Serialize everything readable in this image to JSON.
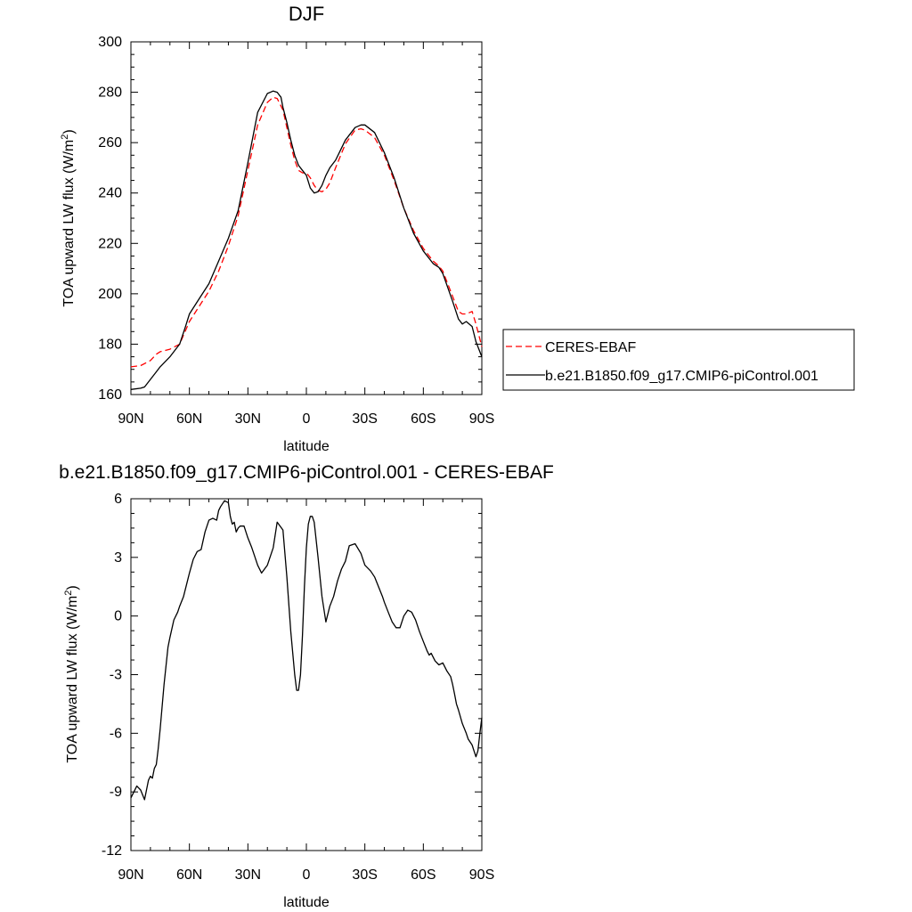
{
  "chart_data": [
    {
      "type": "line",
      "title": "DJF",
      "xlabel": "latitude",
      "ylabel_main": "TOA upward LW flux (W/m",
      "ylabel_sup": "2",
      "ylabel_close": ")",
      "xlim": [
        90,
        -90
      ],
      "ylim": [
        160,
        300
      ],
      "xticks": [
        90,
        60,
        30,
        0,
        -30,
        -60,
        -90
      ],
      "xtick_labels": [
        "90N",
        "60N",
        "30N",
        "0",
        "30S",
        "60S",
        "90S"
      ],
      "yticks": [
        160,
        180,
        200,
        220,
        240,
        260,
        280,
        300
      ],
      "ytick_labels": [
        "160",
        "180",
        "200",
        "220",
        "240",
        "260",
        "280",
        "300"
      ],
      "legend_position": "right",
      "series": [
        {
          "name": "CERES-EBAF",
          "color": "#ff0000",
          "dash": "dashed",
          "x": [
            90,
            85,
            80,
            77,
            75,
            70,
            65,
            60,
            55,
            50,
            45,
            40,
            35,
            30,
            25,
            20,
            17,
            15,
            12,
            10,
            8,
            6,
            4,
            2,
            0,
            -2,
            -4,
            -6,
            -8,
            -10,
            -12,
            -15,
            -20,
            -25,
            -28,
            -30,
            -35,
            -40,
            -45,
            -50,
            -55,
            -60,
            -65,
            -68,
            -70,
            -75,
            -78,
            -80,
            -82,
            -85,
            -87,
            -90
          ],
          "y": [
            171,
            171.5,
            173.5,
            176,
            177,
            178,
            180,
            189,
            195,
            201,
            209,
            219,
            231,
            249,
            267,
            276,
            278,
            277.5,
            273,
            266,
            259,
            253,
            249,
            248,
            248,
            246,
            243,
            241,
            240.5,
            241.5,
            244,
            250,
            259.5,
            265,
            265.5,
            265,
            262,
            255,
            245,
            234,
            225,
            218,
            213,
            211,
            209,
            199,
            193,
            192,
            192,
            193,
            188,
            179
          ]
        },
        {
          "name": "b.e21.B1850.f09_g17.CMIP6-piControl.001",
          "color": "#000000",
          "dash": "solid",
          "x": [
            90,
            85,
            83,
            80,
            77,
            75,
            70,
            65,
            62,
            60,
            55,
            50,
            45,
            40,
            35,
            30,
            25,
            20,
            17,
            15,
            13,
            12,
            10,
            8,
            6,
            4,
            2,
            0,
            -2,
            -4,
            -6,
            -8,
            -10,
            -12,
            -15,
            -20,
            -25,
            -28,
            -30,
            -35,
            -40,
            -45,
            -50,
            -55,
            -60,
            -65,
            -68,
            -70,
            -75,
            -78,
            -80,
            -82,
            -85,
            -87,
            -90
          ],
          "y": [
            162,
            162.5,
            163,
            166,
            169,
            171,
            175,
            180,
            187,
            192,
            198,
            204,
            213,
            222,
            233,
            252,
            272,
            279.5,
            280.5,
            280,
            278,
            274,
            268,
            261,
            255,
            251,
            249,
            247,
            242,
            240,
            240.5,
            243,
            247,
            250,
            253,
            261,
            266,
            267,
            267,
            264,
            256,
            246,
            234,
            224,
            217,
            212,
            210.5,
            208,
            197,
            190,
            188,
            189,
            187,
            181,
            175
          ]
        }
      ]
    },
    {
      "type": "line",
      "title": "b.e21.B1850.f09_g17.CMIP6-piControl.001 - CERES-EBAF",
      "xlabel": "latitude",
      "ylabel_main": "TOA upward LW flux (W/m",
      "ylabel_sup": "2",
      "ylabel_close": ")",
      "xlim": [
        90,
        -90
      ],
      "ylim": [
        -12,
        6
      ],
      "xticks": [
        90,
        60,
        30,
        0,
        -30,
        -60,
        -90
      ],
      "xtick_labels": [
        "90N",
        "60N",
        "30N",
        "0",
        "30S",
        "60S",
        "90S"
      ],
      "yticks": [
        -12,
        -9,
        -6,
        -3,
        0,
        3,
        6
      ],
      "ytick_labels": [
        "-12",
        "-9",
        "-6",
        "-3",
        "0",
        "3",
        "6"
      ],
      "series": [
        {
          "color": "#000000",
          "dash": "solid",
          "x": [
            90,
            87,
            85,
            83,
            81,
            80,
            79,
            78,
            77,
            76,
            75,
            73,
            71,
            70,
            68,
            66,
            65,
            63,
            61,
            60,
            58,
            56,
            54,
            52,
            50,
            48,
            46,
            45,
            44,
            42,
            40,
            39,
            38,
            37,
            36,
            35,
            34,
            32,
            30,
            28,
            27,
            25,
            23,
            20,
            17,
            15,
            12,
            10,
            8,
            6,
            5,
            4,
            3,
            2,
            1,
            0,
            -1,
            -2,
            -3,
            -4,
            -6,
            -8,
            -10,
            -12,
            -14,
            -16,
            -18,
            -20,
            -22,
            -25,
            -28,
            -30,
            -33,
            -35,
            -37,
            -39,
            -40,
            -42,
            -44,
            -46,
            -48,
            -50,
            -52,
            -54,
            -56,
            -58,
            -60,
            -62,
            -63,
            -64,
            -66,
            -68,
            -70,
            -72,
            -74,
            -75,
            -76,
            -77,
            -78,
            -80,
            -82,
            -83,
            -85,
            -86,
            -87,
            -88,
            -89,
            -90
          ],
          "y": [
            -9.3,
            -8.7,
            -8.9,
            -9.4,
            -8.4,
            -8.2,
            -8.3,
            -7.8,
            -7.6,
            -6.8,
            -5.8,
            -3.5,
            -1.6,
            -1.1,
            -0.2,
            0.2,
            0.5,
            1.0,
            1.8,
            2.2,
            2.9,
            3.3,
            3.4,
            4.3,
            4.9,
            5.0,
            4.9,
            5.4,
            5.6,
            5.9,
            5.8,
            5.1,
            4.7,
            4.8,
            4.3,
            4.5,
            4.6,
            4.6,
            4.0,
            3.5,
            3.2,
            2.6,
            2.2,
            2.6,
            3.5,
            4.8,
            4.4,
            2.0,
            -0.8,
            -3.0,
            -3.8,
            -3.8,
            -3.0,
            -1.0,
            1.5,
            3.5,
            4.7,
            5.1,
            5.1,
            4.8,
            3.0,
            1.0,
            -0.3,
            0.5,
            1.0,
            1.8,
            2.4,
            2.8,
            3.6,
            3.7,
            3.2,
            2.6,
            2.3,
            2.0,
            1.5,
            1.0,
            0.7,
            0.2,
            -0.3,
            -0.6,
            -0.6,
            0.0,
            0.3,
            0.2,
            -0.2,
            -0.8,
            -1.3,
            -1.8,
            -2.0,
            -1.9,
            -2.3,
            -2.5,
            -2.4,
            -2.8,
            -3.1,
            -3.5,
            -4.0,
            -4.5,
            -4.8,
            -5.5,
            -6.0,
            -6.3,
            -6.6,
            -6.9,
            -7.2,
            -6.9,
            -6.0,
            -5.2
          ]
        }
      ]
    }
  ]
}
